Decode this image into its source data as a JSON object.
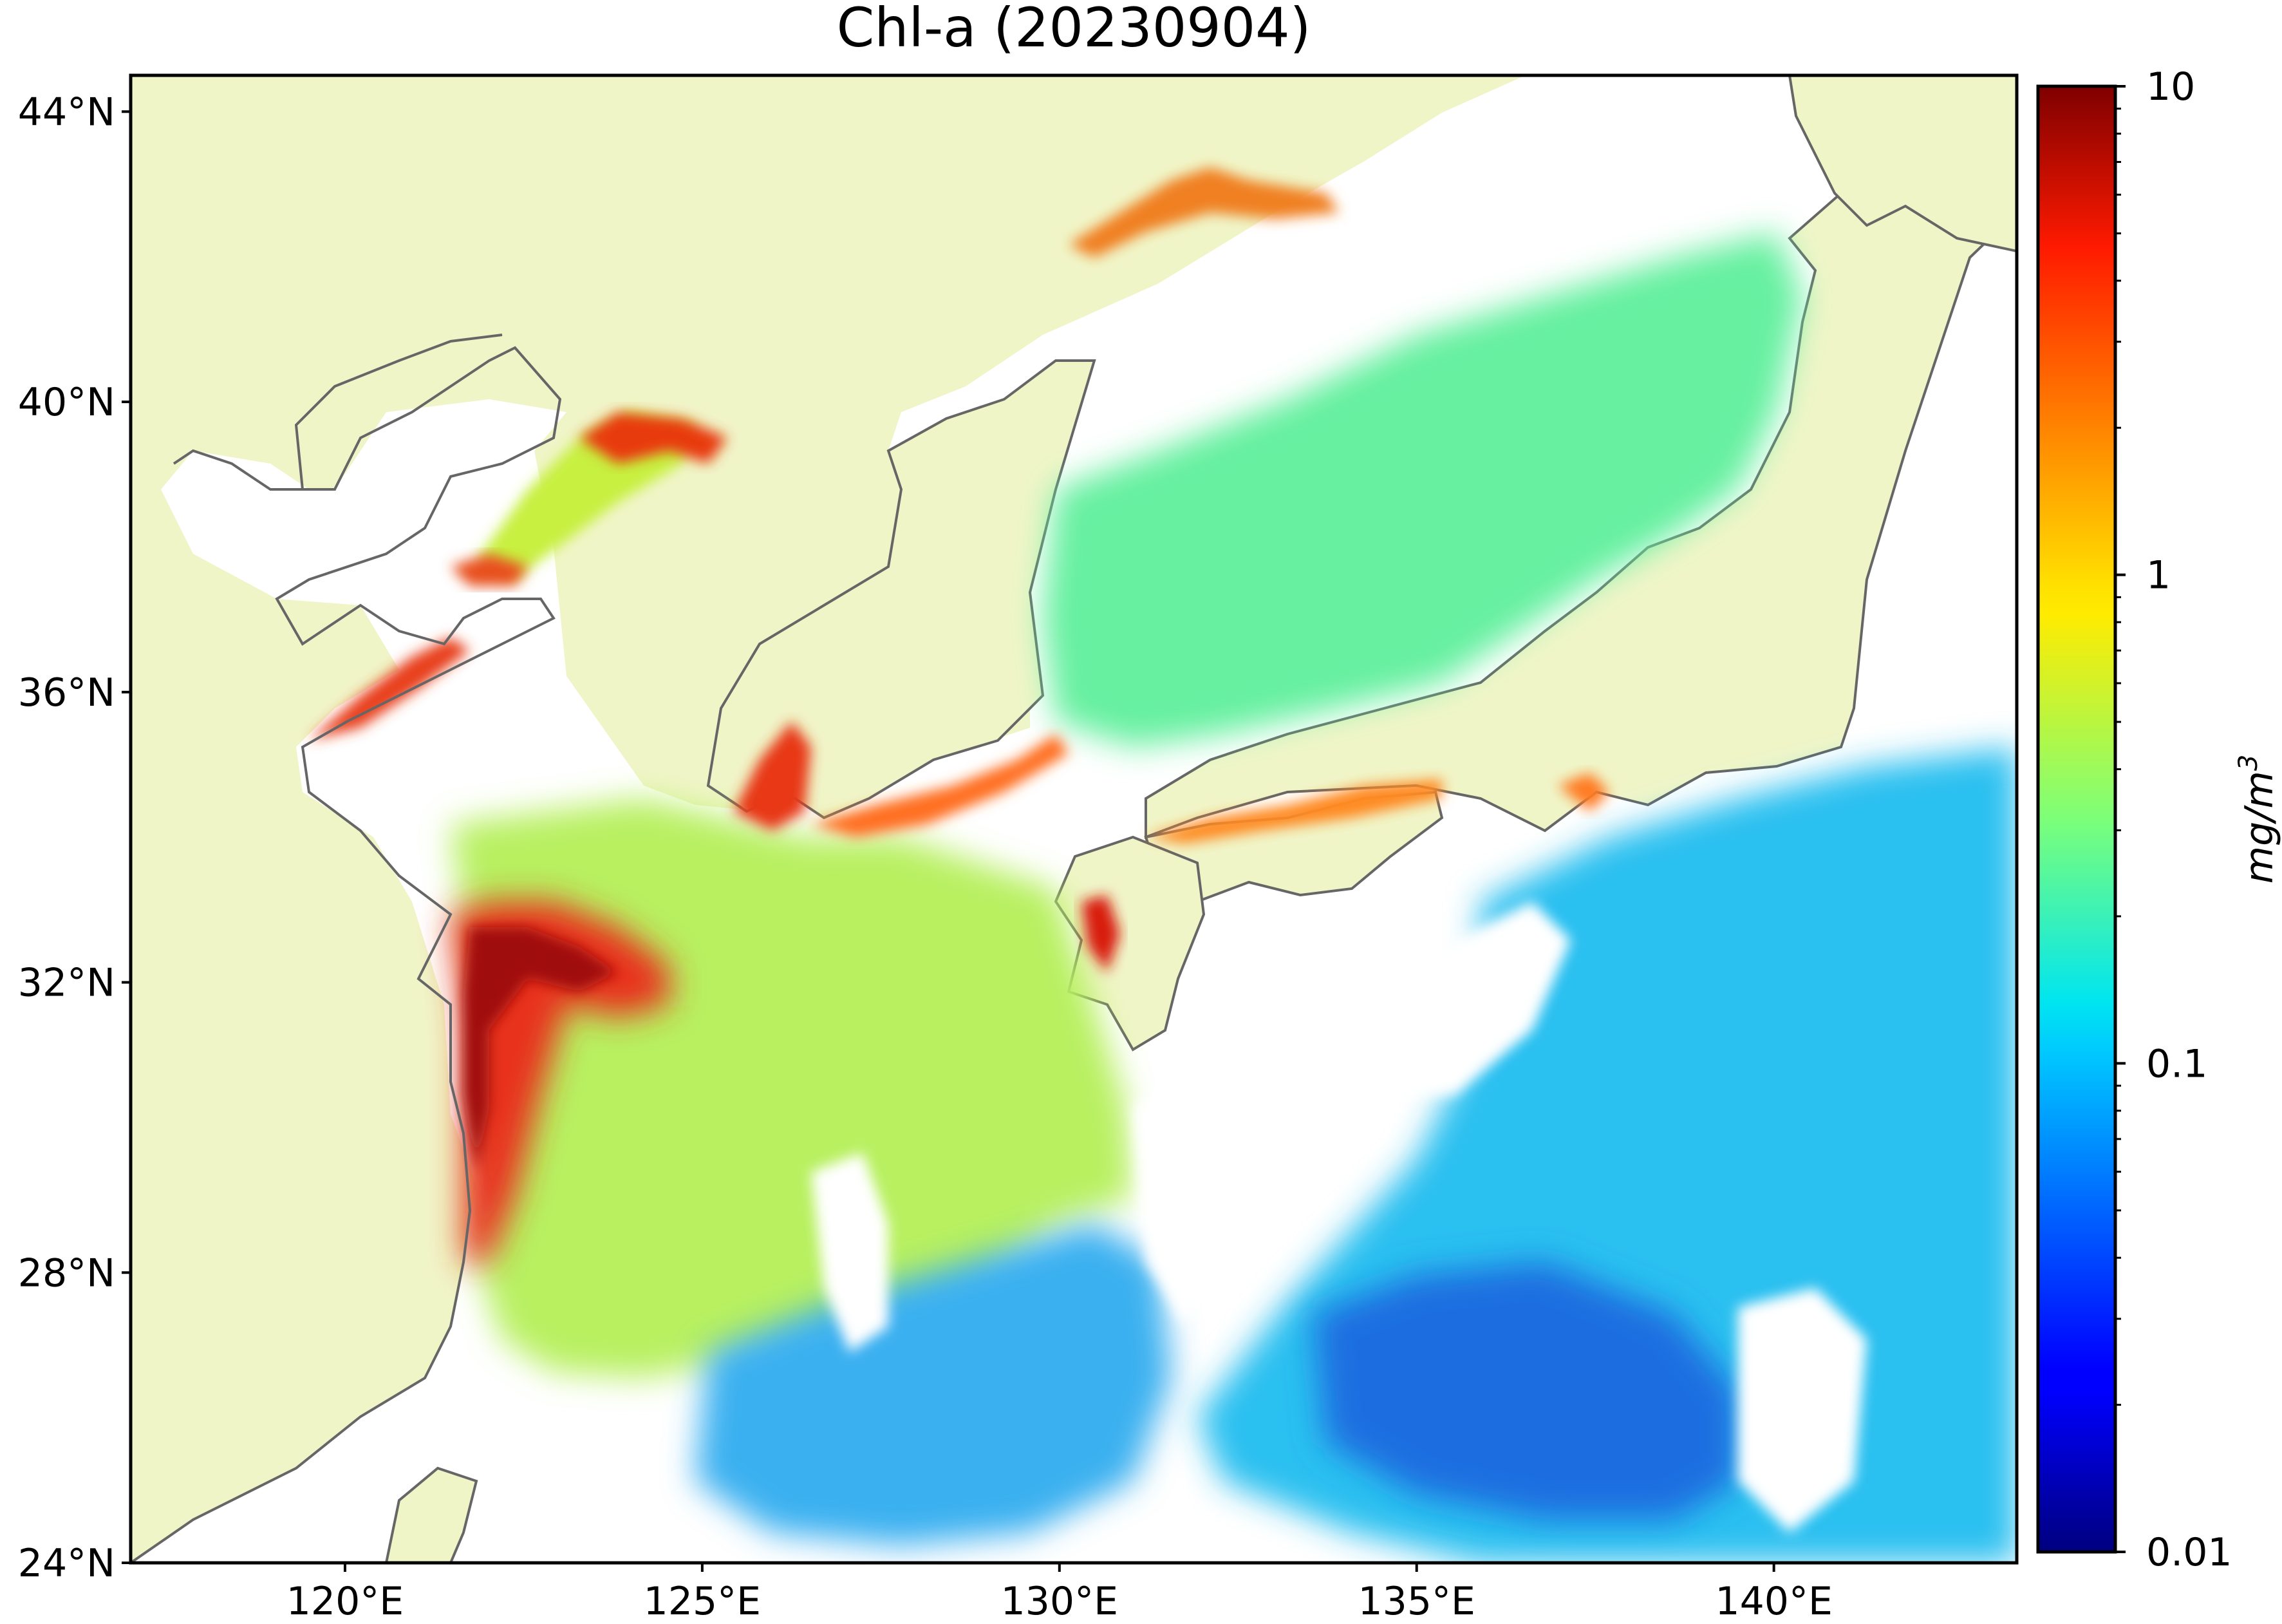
{
  "title": "Chl-a (20230904)",
  "map": {
    "lon_range": [
      117,
      143.4
    ],
    "lat_range": [
      24,
      44.5
    ],
    "lat_ticks": [
      {
        "value": 44,
        "label": "44°N"
      },
      {
        "value": 40,
        "label": "40°N"
      },
      {
        "value": 36,
        "label": "36°N"
      },
      {
        "value": 32,
        "label": "32°N"
      },
      {
        "value": 28,
        "label": "28°N"
      },
      {
        "value": 24,
        "label": "24°N"
      }
    ],
    "lon_ticks": [
      {
        "value": 120,
        "label": "120°E"
      },
      {
        "value": 125,
        "label": "125°E"
      },
      {
        "value": 130,
        "label": "130°E"
      },
      {
        "value": 135,
        "label": "135°E"
      },
      {
        "value": 140,
        "label": "140°E"
      }
    ],
    "land_color": "#f0f5c8",
    "coast_color": "#666666",
    "nodata_color": "#ffffff"
  },
  "colorbar": {
    "label_base": "mg/m",
    "label_exp": "3",
    "scale": "log",
    "range": [
      0.01,
      10
    ],
    "colormap": "jet",
    "ticks": [
      {
        "value": 10,
        "label": "10"
      },
      {
        "value": 1,
        "label": "1"
      },
      {
        "value": 0.1,
        "label": "0.1"
      },
      {
        "value": 0.01,
        "label": "0.01"
      }
    ]
  }
}
